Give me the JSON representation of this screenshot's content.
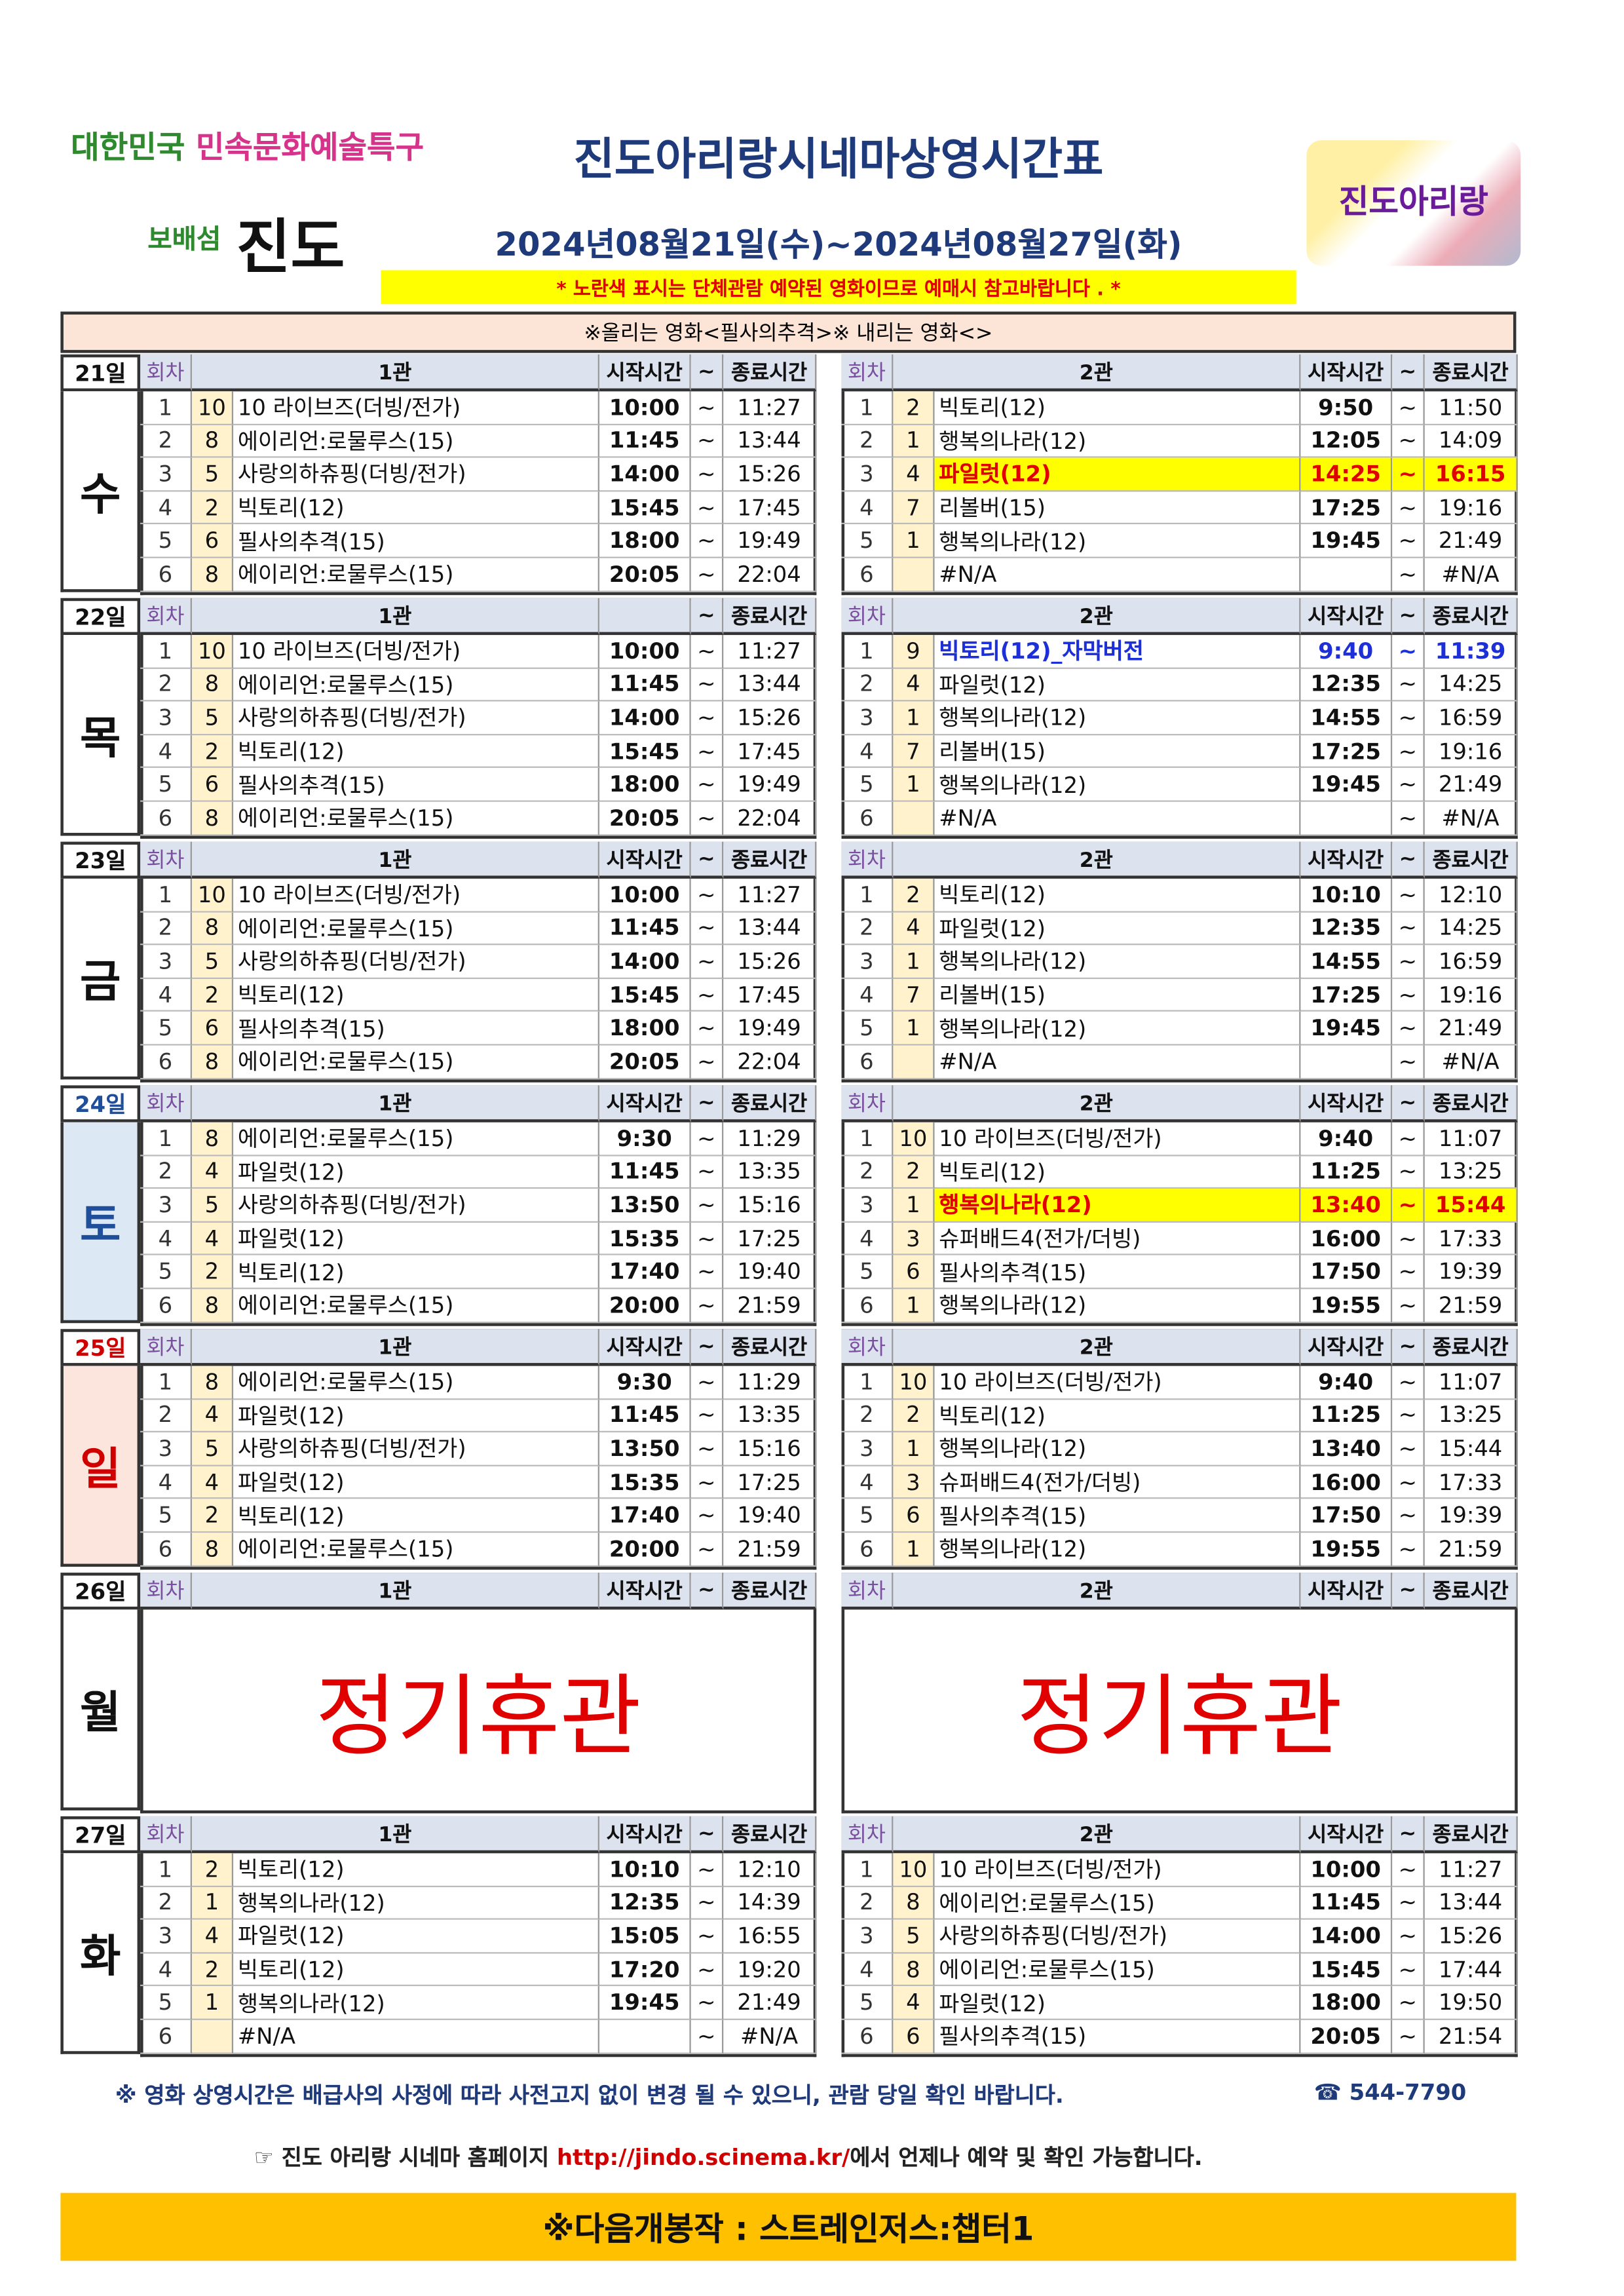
{
  "header": {
    "logo_left_a": "대한민국",
    "logo_left_b": "민속문화예술특구",
    "logo_left_c": "보배섬",
    "logo_left_d": "진도",
    "logo_right": "진도아리랑",
    "title": "진도아리랑시네마상영시간표",
    "date_range": "2024년08월21일(수)~2024년08월27일(화)",
    "notice": "* 노란색 표시는 단체관람 예약된 영화이므로 예매시 참고바랍니다 . *"
  },
  "table": {
    "caption": "※올리는 영화<필사의추격>※ 내리는 영화<>",
    "days": [
      {
        "day": "21일",
        "weekday": "수",
        "halls": [
          {
            "header": {
              "round": "회차",
              "hall": "1관",
              "start": "시작시간",
              "tilde": "~",
              "end": "종료시간"
            },
            "rows": [
              [
                "1",
                "10",
                "10 라이브즈(더빙/전가)",
                "10:00",
                "~",
                "11:27"
              ],
              [
                "2",
                "8",
                "에이리언:로물루스(15)",
                "11:45",
                "~",
                "13:44"
              ],
              [
                "3",
                "5",
                "사랑의하츄핑(더빙/전가)",
                "14:00",
                "~",
                "15:26"
              ],
              [
                "4",
                "2",
                "빅토리(12)",
                "15:45",
                "~",
                "17:45"
              ],
              [
                "5",
                "6",
                "필사의추격(15)",
                "18:00",
                "~",
                "19:49"
              ],
              [
                "6",
                "8",
                "에이리언:로물루스(15)",
                "20:05",
                "~",
                "22:04"
              ]
            ]
          },
          {
            "header": {
              "round": "회차",
              "hall": "2관",
              "start": "시작시간",
              "tilde": "~",
              "end": "종료시간"
            },
            "yellow": [
              2
            ],
            "rows": [
              [
                "1",
                "2",
                "빅토리(12)",
                "9:50",
                "~",
                "11:50"
              ],
              [
                "2",
                "1",
                "행복의나라(12)",
                "12:05",
                "~",
                "14:09"
              ],
              [
                "3",
                "4",
                "파일럿(12)",
                "14:25",
                "~",
                "16:15"
              ],
              [
                "4",
                "7",
                "리볼버(15)",
                "17:25",
                "~",
                "19:16"
              ],
              [
                "5",
                "1",
                "행복의나라(12)",
                "19:45",
                "~",
                "21:49"
              ],
              [
                "6",
                null,
                "#N/A",
                null,
                "~",
                "#N/A"
              ]
            ]
          }
        ]
      },
      {
        "day": "22일",
        "weekday": "목",
        "halls": [
          {
            "header": {
              "round": "회차",
              "hall": "1관",
              "tilde": "~",
              "end": "종료시간"
            },
            "rows": [
              [
                "1",
                "10",
                "10 라이브즈(더빙/전가)",
                "10:00",
                "~",
                "11:27"
              ],
              [
                "2",
                "8",
                "에이리언:로물루스(15)",
                "11:45",
                "~",
                "13:44"
              ],
              [
                "3",
                "5",
                "사랑의하츄핑(더빙/전가)",
                "14:00",
                "~",
                "15:26"
              ],
              [
                "4",
                "2",
                "빅토리(12)",
                "15:45",
                "~",
                "17:45"
              ],
              [
                "5",
                "6",
                "필사의추격(15)",
                "18:00",
                "~",
                "19:49"
              ],
              [
                "6",
                "8",
                "에이리언:로물루스(15)",
                "20:05",
                "~",
                "22:04"
              ]
            ]
          },
          {
            "header": {
              "round": "회차",
              "hall": "2관",
              "start": "시작시간",
              "tilde": "~",
              "end": "종료시간"
            },
            "blue": [
              0
            ],
            "rows": [
              [
                "1",
                "9",
                "빅토리(12)_자막버전",
                "9:40",
                "~",
                "11:39"
              ],
              [
                "2",
                "4",
                "파일럿(12)",
                "12:35",
                "~",
                "14:25"
              ],
              [
                "3",
                "1",
                "행복의나라(12)",
                "14:55",
                "~",
                "16:59"
              ],
              [
                "4",
                "7",
                "리볼버(15)",
                "17:25",
                "~",
                "19:16"
              ],
              [
                "5",
                "1",
                "행복의나라(12)",
                "19:45",
                "~",
                "21:49"
              ],
              [
                "6",
                null,
                "#N/A",
                null,
                "~",
                "#N/A"
              ]
            ]
          }
        ]
      },
      {
        "day": "23일",
        "weekday": "금",
        "halls": [
          {
            "header": {
              "round": "회차",
              "hall": "1관",
              "start": "시작시간",
              "tilde": "~",
              "end": "종료시간"
            },
            "rows": [
              [
                "1",
                "10",
                "10 라이브즈(더빙/전가)",
                "10:00",
                "~",
                "11:27"
              ],
              [
                "2",
                "8",
                "에이리언:로물루스(15)",
                "11:45",
                "~",
                "13:44"
              ],
              [
                "3",
                "5",
                "사랑의하츄핑(더빙/전가)",
                "14:00",
                "~",
                "15:26"
              ],
              [
                "4",
                "2",
                "빅토리(12)",
                "15:45",
                "~",
                "17:45"
              ],
              [
                "5",
                "6",
                "필사의추격(15)",
                "18:00",
                "~",
                "19:49"
              ],
              [
                "6",
                "8",
                "에이리언:로물루스(15)",
                "20:05",
                "~",
                "22:04"
              ]
            ]
          },
          {
            "header": {
              "round": "회차",
              "hall": "2관",
              "start": "시작시간",
              "tilde": "~",
              "end": "종료시간"
            },
            "rows": [
              [
                "1",
                "2",
                "빅토리(12)",
                "10:10",
                "~",
                "12:10"
              ],
              [
                "2",
                "4",
                "파일럿(12)",
                "12:35",
                "~",
                "14:25"
              ],
              [
                "3",
                "1",
                "행복의나라(12)",
                "14:55",
                "~",
                "16:59"
              ],
              [
                "4",
                "7",
                "리볼버(15)",
                "17:25",
                "~",
                "19:16"
              ],
              [
                "5",
                "1",
                "행복의나라(12)",
                "19:45",
                "~",
                "21:49"
              ],
              [
                "6",
                null,
                "#N/A",
                null,
                "~",
                "#N/A"
              ]
            ]
          }
        ]
      },
      {
        "day": "24일",
        "weekday": "토",
        "color": "#1f4e9a",
        "bg": "#dde8f5",
        "halls": [
          {
            "header": {
              "round": "회차",
              "hall": "1관",
              "start": "시작시간",
              "tilde": "~",
              "end": "종료시간"
            },
            "rows": [
              [
                "1",
                "8",
                "에이리언:로물루스(15)",
                "9:30",
                "~",
                "11:29"
              ],
              [
                "2",
                "4",
                "파일럿(12)",
                "11:45",
                "~",
                "13:35"
              ],
              [
                "3",
                "5",
                "사랑의하츄핑(더빙/전가)",
                "13:50",
                "~",
                "15:16"
              ],
              [
                "4",
                "4",
                "파일럿(12)",
                "15:35",
                "~",
                "17:25"
              ],
              [
                "5",
                "2",
                "빅토리(12)",
                "17:40",
                "~",
                "19:40"
              ],
              [
                "6",
                "8",
                "에이리언:로물루스(15)",
                "20:00",
                "~",
                "21:59"
              ]
            ]
          },
          {
            "header": {
              "round": "회차",
              "hall": "2관",
              "start": "시작시간",
              "tilde": "~",
              "end": "종료시간"
            },
            "yellow": [
              2
            ],
            "rows": [
              [
                "1",
                "10",
                "10 라이브즈(더빙/전가)",
                "9:40",
                "~",
                "11:07"
              ],
              [
                "2",
                "2",
                "빅토리(12)",
                "11:25",
                "~",
                "13:25"
              ],
              [
                "3",
                "1",
                "행복의나라(12)",
                "13:40",
                "~",
                "15:44"
              ],
              [
                "4",
                "3",
                "슈퍼배드4(전가/더빙)",
                "16:00",
                "~",
                "17:33"
              ],
              [
                "5",
                "6",
                "필사의추격(15)",
                "17:50",
                "~",
                "19:39"
              ],
              [
                "6",
                "1",
                "행복의나라(12)",
                "19:55",
                "~",
                "21:59"
              ]
            ]
          }
        ]
      },
      {
        "day": "25일",
        "weekday": "일",
        "color": "#d00000",
        "bg": "#fbe5dc",
        "halls": [
          {
            "header": {
              "round": "회차",
              "hall": "1관",
              "start": "시작시간",
              "tilde": "~",
              "end": "종료시간"
            },
            "rows": [
              [
                "1",
                "8",
                "에이리언:로물루스(15)",
                "9:30",
                "~",
                "11:29"
              ],
              [
                "2",
                "4",
                "파일럿(12)",
                "11:45",
                "~",
                "13:35"
              ],
              [
                "3",
                "5",
                "사랑의하츄핑(더빙/전가)",
                "13:50",
                "~",
                "15:16"
              ],
              [
                "4",
                "4",
                "파일럿(12)",
                "15:35",
                "~",
                "17:25"
              ],
              [
                "5",
                "2",
                "빅토리(12)",
                "17:40",
                "~",
                "19:40"
              ],
              [
                "6",
                "8",
                "에이리언:로물루스(15)",
                "20:00",
                "~",
                "21:59"
              ]
            ]
          },
          {
            "header": {
              "round": "회차",
              "hall": "2관",
              "start": "시작시간",
              "tilde": "~",
              "end": "종료시간"
            },
            "rows": [
              [
                "1",
                "10",
                "10 라이브즈(더빙/전가)",
                "9:40",
                "~",
                "11:07"
              ],
              [
                "2",
                "2",
                "빅토리(12)",
                "11:25",
                "~",
                "13:25"
              ],
              [
                "3",
                "1",
                "행복의나라(12)",
                "13:40",
                "~",
                "15:44"
              ],
              [
                "4",
                "3",
                "슈퍼배드4(전가/더빙)",
                "16:00",
                "~",
                "17:33"
              ],
              [
                "5",
                "6",
                "필사의추격(15)",
                "17:50",
                "~",
                "19:39"
              ],
              [
                "6",
                "1",
                "행복의나라(12)",
                "19:55",
                "~",
                "21:59"
              ]
            ]
          }
        ]
      },
      {
        "day": "26일",
        "weekday": "월",
        "halls": [
          {
            "header": {
              "round": "회차",
              "hall": "1관",
              "start": "시작시간",
              "tilde": "~",
              "end": "종료시간"
            },
            "closed": "정기휴관"
          },
          {
            "header": {
              "round": "회차",
              "hall": "2관",
              "start": "시작시간",
              "tilde": "~",
              "end": "종료시간"
            },
            "closed": "정기휴관"
          }
        ]
      },
      {
        "day": "27일",
        "weekday": "화",
        "halls": [
          {
            "header": {
              "round": "회차",
              "hall": "1관",
              "start": "시작시간",
              "tilde": "~",
              "end": "종료시간"
            },
            "rows": [
              [
                "1",
                "2",
                "빅토리(12)",
                "10:10",
                "~",
                "12:10"
              ],
              [
                "2",
                "1",
                "행복의나라(12)",
                "12:35",
                "~",
                "14:39"
              ],
              [
                "3",
                "4",
                "파일럿(12)",
                "15:05",
                "~",
                "16:55"
              ],
              [
                "4",
                "2",
                "빅토리(12)",
                "17:20",
                "~",
                "19:20"
              ],
              [
                "5",
                "1",
                "행복의나라(12)",
                "19:45",
                "~",
                "21:49"
              ],
              [
                "6",
                null,
                "#N/A",
                null,
                "~",
                "#N/A"
              ]
            ]
          },
          {
            "header": {
              "round": "회차",
              "hall": "2관",
              "start": "시작시간",
              "tilde": "~",
              "end": "종료시간"
            },
            "rows": [
              [
                "1",
                "10",
                "10 라이브즈(더빙/전가)",
                "10:00",
                "~",
                "11:27"
              ],
              [
                "2",
                "8",
                "에이리언:로물루스(15)",
                "11:45",
                "~",
                "13:44"
              ],
              [
                "3",
                "5",
                "사랑의하츄핑(더빙/전가)",
                "14:00",
                "~",
                "15:26"
              ],
              [
                "4",
                "8",
                "에이리언:로물루스(15)",
                "15:45",
                "~",
                "17:44"
              ],
              [
                "5",
                "4",
                "파일럿(12)",
                "18:00",
                "~",
                "19:50"
              ],
              [
                "6",
                "6",
                "필사의추격(15)",
                "20:05",
                "~",
                "21:54"
              ]
            ]
          }
        ]
      }
    ]
  },
  "footer": {
    "note": "※ 영화 상영시간은 배급사의 사정에 따라 사전고지 없이 변경 될 수 있으니, 관람 당일 확인 바랍니다.",
    "phone": "☎ 544-7790",
    "home_a": "☞ 진도 아리랑 시네마 홈페이지 ",
    "home_url": "http://jindo.scinema.kr/",
    "home_b": "에서 언제나 예약 및 확인 가능합니다.",
    "next": "※다음개봉작 : 스트레인저스:챕터1"
  }
}
